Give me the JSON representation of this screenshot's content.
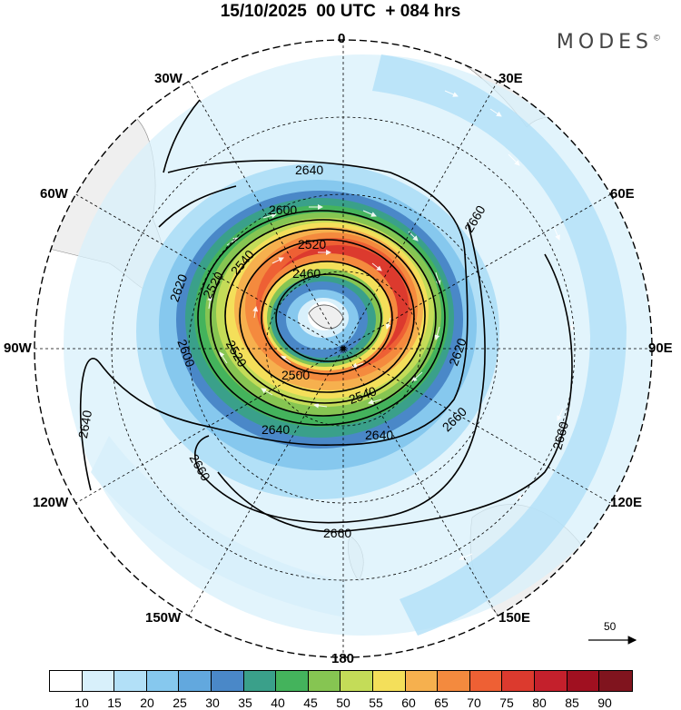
{
  "title": "15/10/2025  00 UTC  + 084 hrs",
  "brand": "MODES",
  "brand_mark": "©",
  "longitude_labels": {
    "n0": "0",
    "e30": "30E",
    "e60": "60E",
    "e90": "90E",
    "e120": "120E",
    "e150": "150E",
    "s180": "180",
    "w150": "150W",
    "w120": "120W",
    "w90": "90W",
    "w60": "60W",
    "w30": "30W"
  },
  "contour_labels": [
    "2640",
    "2600",
    "2520",
    "2460",
    "2660",
    "2520",
    "2540",
    "2620",
    "2600",
    "2520",
    "2500",
    "2540",
    "2620",
    "2640",
    "2640",
    "2660",
    "2640",
    "2660",
    "2660",
    "2660"
  ],
  "reference_vector_label": "50",
  "colorbar": {
    "ticks": [
      "10",
      "15",
      "20",
      "25",
      "30",
      "35",
      "40",
      "45",
      "50",
      "55",
      "60",
      "65",
      "70",
      "75",
      "80",
      "85",
      "90"
    ],
    "colors": [
      "#ffffff",
      "#d8f0fb",
      "#b2e0f7",
      "#86c8ee",
      "#62a8de",
      "#4a88c8",
      "#3aa08a",
      "#44b35c",
      "#86c552",
      "#c4dc58",
      "#f4df5a",
      "#f6b04e",
      "#f48a3e",
      "#ee6034",
      "#dc3a2e",
      "#c4202c",
      "#a01020",
      "#80141e"
    ]
  },
  "icons": [
    "ref-arrow-icon",
    "pole-marker-icon"
  ]
}
